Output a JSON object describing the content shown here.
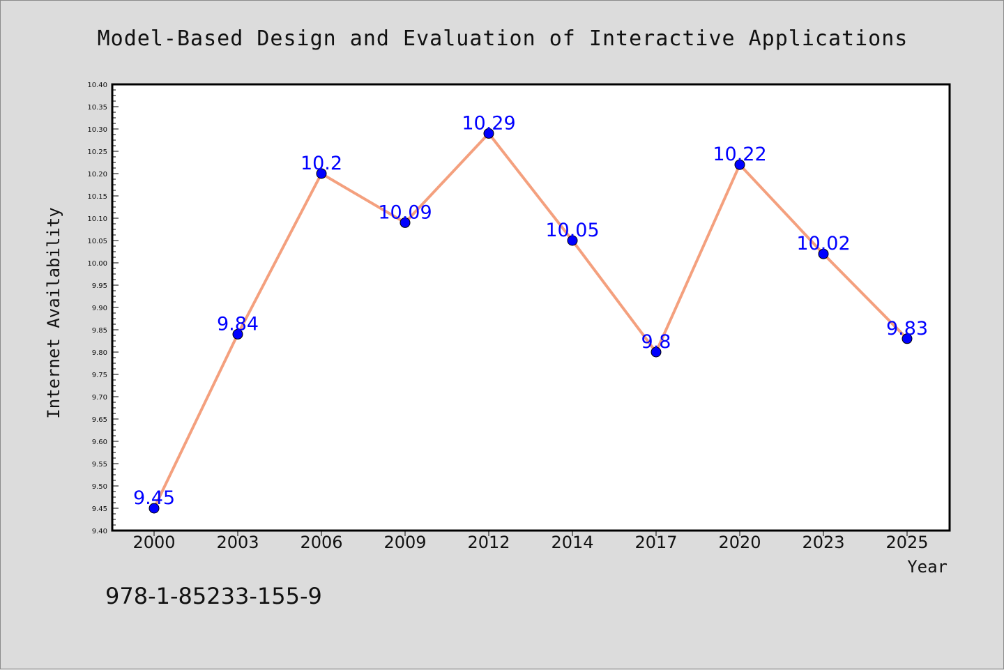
{
  "chart_data": {
    "type": "line",
    "title": "Model-Based Design and Evaluation of Interactive Applications",
    "xlabel": "Year",
    "ylabel": "Internet Availability",
    "categories": [
      "2000",
      "2003",
      "2006",
      "2009",
      "2012",
      "2014",
      "2017",
      "2020",
      "2023",
      "2025"
    ],
    "series": [
      {
        "values": [
          9.45,
          9.84,
          10.2,
          10.09,
          10.29,
          10.05,
          9.8,
          10.22,
          10.02,
          9.83
        ],
        "labels": [
          "9.45",
          "9.84",
          "10.2",
          "10.09",
          "10.29",
          "10.05",
          "9.8",
          "10.22",
          "10.02",
          "9.83"
        ],
        "line_color": "#f4a07e",
        "marker_color": "#0000ff"
      }
    ],
    "ylim": [
      9.4,
      10.4
    ],
    "yticks": [
      "9.40",
      "9.45",
      "9.50",
      "9.55",
      "9.60",
      "9.65",
      "9.70",
      "9.75",
      "9.80",
      "9.85",
      "9.90",
      "9.95",
      "10.00",
      "10.05",
      "10.10",
      "10.15",
      "10.20",
      "10.25",
      "10.30",
      "10.35",
      "10.40"
    ],
    "grid": false,
    "legend": "none",
    "background_color": "#dcdcdc",
    "plot_background_color": "#ffffff"
  },
  "footer": {
    "isbn": "978-1-85233-155-9"
  }
}
